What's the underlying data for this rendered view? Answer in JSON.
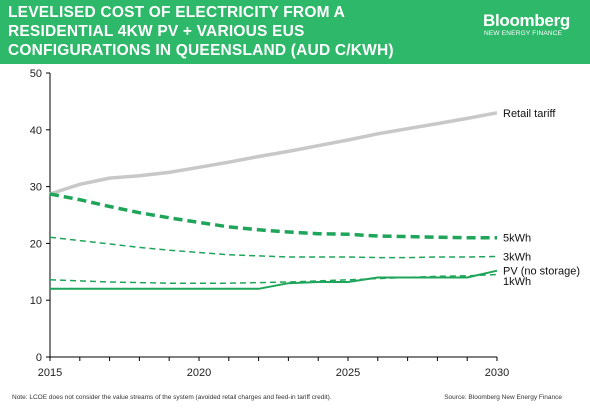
{
  "header": {
    "title_lines": [
      "LEVELISED COST OF ELECTRICITY FROM A",
      "RESIDENTIAL 4KW  PV + VARIOUS EUS",
      "CONFIGURATIONS IN QUEENSLAND (AUD C/KWH)"
    ],
    "brand_name": "Bloomberg",
    "brand_sub": "NEW ENERGY FINANCE",
    "bg_color": "#2eb86a"
  },
  "footer": {
    "note": "Note: LCOE does not consider the value streams of the system (avoided retail charges and feed-in tariff credit).",
    "source": "Source: Bloomberg New Energy Finance"
  },
  "chart_data": {
    "type": "line",
    "title": "LEVELISED COST OF ELECTRICITY FROM A RESIDENTIAL 4KW  PV + VARIOUS EUS CONFIGURATIONS IN QUEENSLAND (AUD C/KWH)",
    "xlabel": "",
    "ylabel": "",
    "xlim": [
      2015,
      2030
    ],
    "ylim": [
      0,
      50
    ],
    "x_ticks": [
      2015,
      2020,
      2025,
      2030
    ],
    "y_ticks": [
      0,
      10,
      20,
      30,
      40,
      50
    ],
    "grid": false,
    "legend": "end-of-line labels",
    "x": [
      2015,
      2016,
      2017,
      2018,
      2019,
      2020,
      2021,
      2022,
      2023,
      2024,
      2025,
      2026,
      2027,
      2028,
      2029,
      2030
    ],
    "series": [
      {
        "name": "Retail tariff",
        "color": "#c8c8c8",
        "style": "solid-thick",
        "values": [
          28.7,
          30.4,
          31.5,
          31.9,
          32.5,
          33.4,
          34.3,
          35.3,
          36.2,
          37.2,
          38.2,
          39.3,
          40.2,
          41.1,
          42.0,
          43.0
        ]
      },
      {
        "name": "5kWh",
        "color": "#1fa55a",
        "style": "dashed-thick",
        "values": [
          28.7,
          27.7,
          26.5,
          25.4,
          24.5,
          23.7,
          22.9,
          22.4,
          22.0,
          21.7,
          21.6,
          21.3,
          21.2,
          21.1,
          21.0,
          21.0
        ]
      },
      {
        "name": "3kWh",
        "color": "#1fa55a",
        "style": "dashed",
        "values": [
          21.1,
          20.5,
          19.9,
          19.3,
          18.8,
          18.4,
          18.0,
          17.8,
          17.6,
          17.6,
          17.6,
          17.5,
          17.5,
          17.6,
          17.6,
          17.7
        ]
      },
      {
        "name": "PV (no storage)",
        "color": "#1fa55a",
        "style": "solid",
        "values": [
          12.0,
          12.0,
          12.0,
          12.0,
          12.0,
          12.0,
          12.0,
          12.0,
          13.0,
          13.2,
          13.2,
          14.0,
          14.0,
          14.0,
          14.0,
          15.2
        ]
      },
      {
        "name": "1kWh",
        "color": "#1fa55a",
        "style": "dashed",
        "values": [
          13.6,
          13.4,
          13.2,
          13.1,
          13.0,
          13.0,
          13.0,
          13.1,
          13.2,
          13.4,
          13.6,
          13.8,
          14.0,
          14.2,
          14.3,
          14.5
        ]
      }
    ]
  }
}
